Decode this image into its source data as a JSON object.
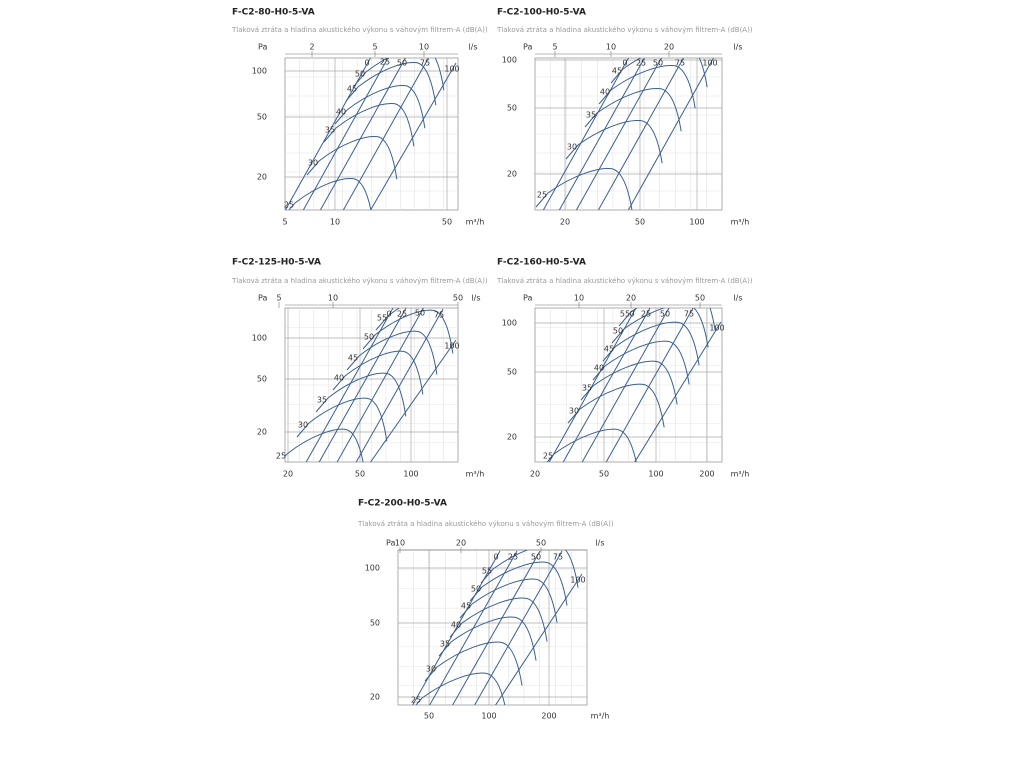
{
  "panels": [
    {
      "title": "F-C2-80-H0-5-VA",
      "subtitle": "Tlaková ztráta a hladina akustického výkonu s váhovým filtrem-A (dB(A))",
      "y_unit": "Pa",
      "top_unit": "l/s",
      "bottom_unit": "m³/h",
      "y_ticks": [
        "100",
        "50",
        "20"
      ],
      "top_ticks": [
        "2",
        "5",
        "10"
      ],
      "bottom_ticks": [
        "5",
        "10",
        "50"
      ],
      "noise_labels": [
        "25",
        "30",
        "35",
        "40",
        "45",
        "50"
      ],
      "damper_labels": [
        "0",
        "25",
        "50",
        "75",
        "100"
      ]
    },
    {
      "title": "F-C2-100-H0-5-VA",
      "subtitle": "Tlaková ztráta a hladina akustického výkonu s váhovým filtrem-A (dB(A))",
      "y_unit": "Pa",
      "top_unit": "l/s",
      "bottom_unit": "m³/h",
      "y_ticks": [
        "100",
        "50",
        "20"
      ],
      "top_ticks": [
        "5",
        "10",
        "20"
      ],
      "bottom_ticks": [
        "20",
        "50",
        "100"
      ],
      "noise_labels": [
        "25",
        "30",
        "35",
        "40",
        "45"
      ],
      "damper_labels": [
        "0",
        "25",
        "50",
        "75",
        "100"
      ]
    },
    {
      "title": "F-C2-125-H0-5-VA",
      "subtitle": "Tlaková ztráta a hladina akustického výkonu s váhovým filtrem-A (dB(A))",
      "y_unit": "Pa",
      "top_unit": "l/s",
      "bottom_unit": "m³/h",
      "y_ticks": [
        "100",
        "50",
        "20"
      ],
      "top_ticks": [
        "5",
        "10",
        "50"
      ],
      "bottom_ticks": [
        "20",
        "50",
        "100"
      ],
      "noise_labels": [
        "25",
        "30",
        "35",
        "40",
        "45",
        "50",
        "55"
      ],
      "damper_labels": [
        "0",
        "25",
        "50",
        "75",
        "100"
      ]
    },
    {
      "title": "F-C2-160-H0-5-VA",
      "subtitle": "Tlaková ztráta a hladina akustického výkonu s váhovým filtrem-A (dB(A))",
      "y_unit": "Pa",
      "top_unit": "l/s",
      "bottom_unit": "m³/h",
      "y_ticks": [
        "100",
        "50",
        "20"
      ],
      "top_ticks": [
        "10",
        "20",
        "50"
      ],
      "bottom_ticks": [
        "20",
        "50",
        "100",
        "200"
      ],
      "noise_labels": [
        "25",
        "30",
        "35",
        "40",
        "45",
        "50",
        "55"
      ],
      "damper_labels": [
        "0",
        "25",
        "50",
        "75",
        "100"
      ]
    },
    {
      "title": "F-C2-200-H0-5-VA",
      "subtitle": "Tlaková ztráta a hladina akustického výkonu s váhovým filtrem-A (dB(A))",
      "y_unit": "Pa",
      "top_unit": "l/s",
      "bottom_unit": "m³/h",
      "y_ticks": [
        "100",
        "50",
        "20"
      ],
      "top_ticks": [
        "10",
        "20",
        "50"
      ],
      "bottom_ticks": [
        "50",
        "100",
        "200"
      ],
      "noise_labels": [
        "25",
        "30",
        "35",
        "40",
        "45",
        "50",
        "55"
      ],
      "damper_labels": [
        "0",
        "25",
        "50",
        "75",
        "100"
      ]
    }
  ]
}
